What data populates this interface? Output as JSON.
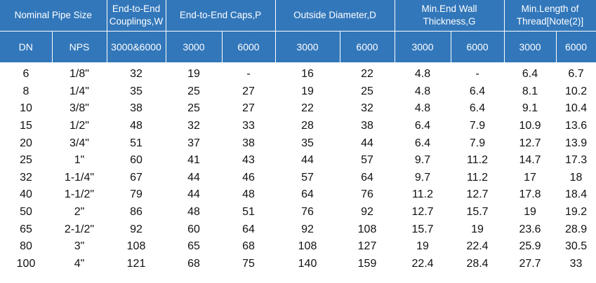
{
  "header_group": {
    "nominal_pipe_size": "Nominal Pipe Size",
    "couplings_line1": "End-to-End",
    "couplings_line2": "Couplings,W",
    "caps": "End-to-End Caps,P",
    "outside_diameter": "Outside Diameter,D",
    "wall_line1": "Min.End Wall",
    "wall_line2": "Thickness,G",
    "thread_line1": "Min.Length of",
    "thread_line2": "Thread[Note(2)]"
  },
  "subheaders": [
    "DN",
    "NPS",
    "3000&6000",
    "3000",
    "6000",
    "3000",
    "6000",
    "3000",
    "6000",
    "3000",
    "6000"
  ],
  "rows": [
    [
      "6",
      "1/8\"",
      "32",
      "19",
      "-",
      "16",
      "22",
      "4.8",
      "-",
      "6.4",
      "6.7"
    ],
    [
      "8",
      "1/4\"",
      "35",
      "25",
      "27",
      "19",
      "25",
      "4.8",
      "6.4",
      "8.1",
      "10.2"
    ],
    [
      "10",
      "3/8\"",
      "38",
      "25",
      "27",
      "22",
      "32",
      "4.8",
      "6.4",
      "9.1",
      "10.4"
    ],
    [
      "15",
      "1/2\"",
      "48",
      "32",
      "33",
      "28",
      "38",
      "6.4",
      "7.9",
      "10.9",
      "13.6"
    ],
    [
      "20",
      "3/4\"",
      "51",
      "37",
      "38",
      "35",
      "44",
      "6.4",
      "7.9",
      "12.7",
      "13.9"
    ],
    [
      "25",
      "1\"",
      "60",
      "41",
      "43",
      "44",
      "57",
      "9.7",
      "11.2",
      "14.7",
      "17.3"
    ],
    [
      "32",
      "1-1/4\"",
      "67",
      "44",
      "46",
      "57",
      "64",
      "9.7",
      "11.2",
      "17",
      "18"
    ],
    [
      "40",
      "1-1/2\"",
      "79",
      "44",
      "48",
      "64",
      "76",
      "11.2",
      "12.7",
      "17.8",
      "18.4"
    ],
    [
      "50",
      "2\"",
      "86",
      "48",
      "51",
      "76",
      "92",
      "12.7",
      "15.7",
      "19",
      "19.2"
    ],
    [
      "65",
      "2-1/2\"",
      "92",
      "60",
      "64",
      "92",
      "108",
      "15.7",
      "19",
      "23.6",
      "28.9"
    ],
    [
      "80",
      "3\"",
      "108",
      "65",
      "68",
      "108",
      "127",
      "19",
      "22.4",
      "25.9",
      "30.5"
    ],
    [
      "100",
      "4\"",
      "121",
      "68",
      "75",
      "140",
      "159",
      "22.4",
      "28.4",
      "27.7",
      "33"
    ]
  ]
}
